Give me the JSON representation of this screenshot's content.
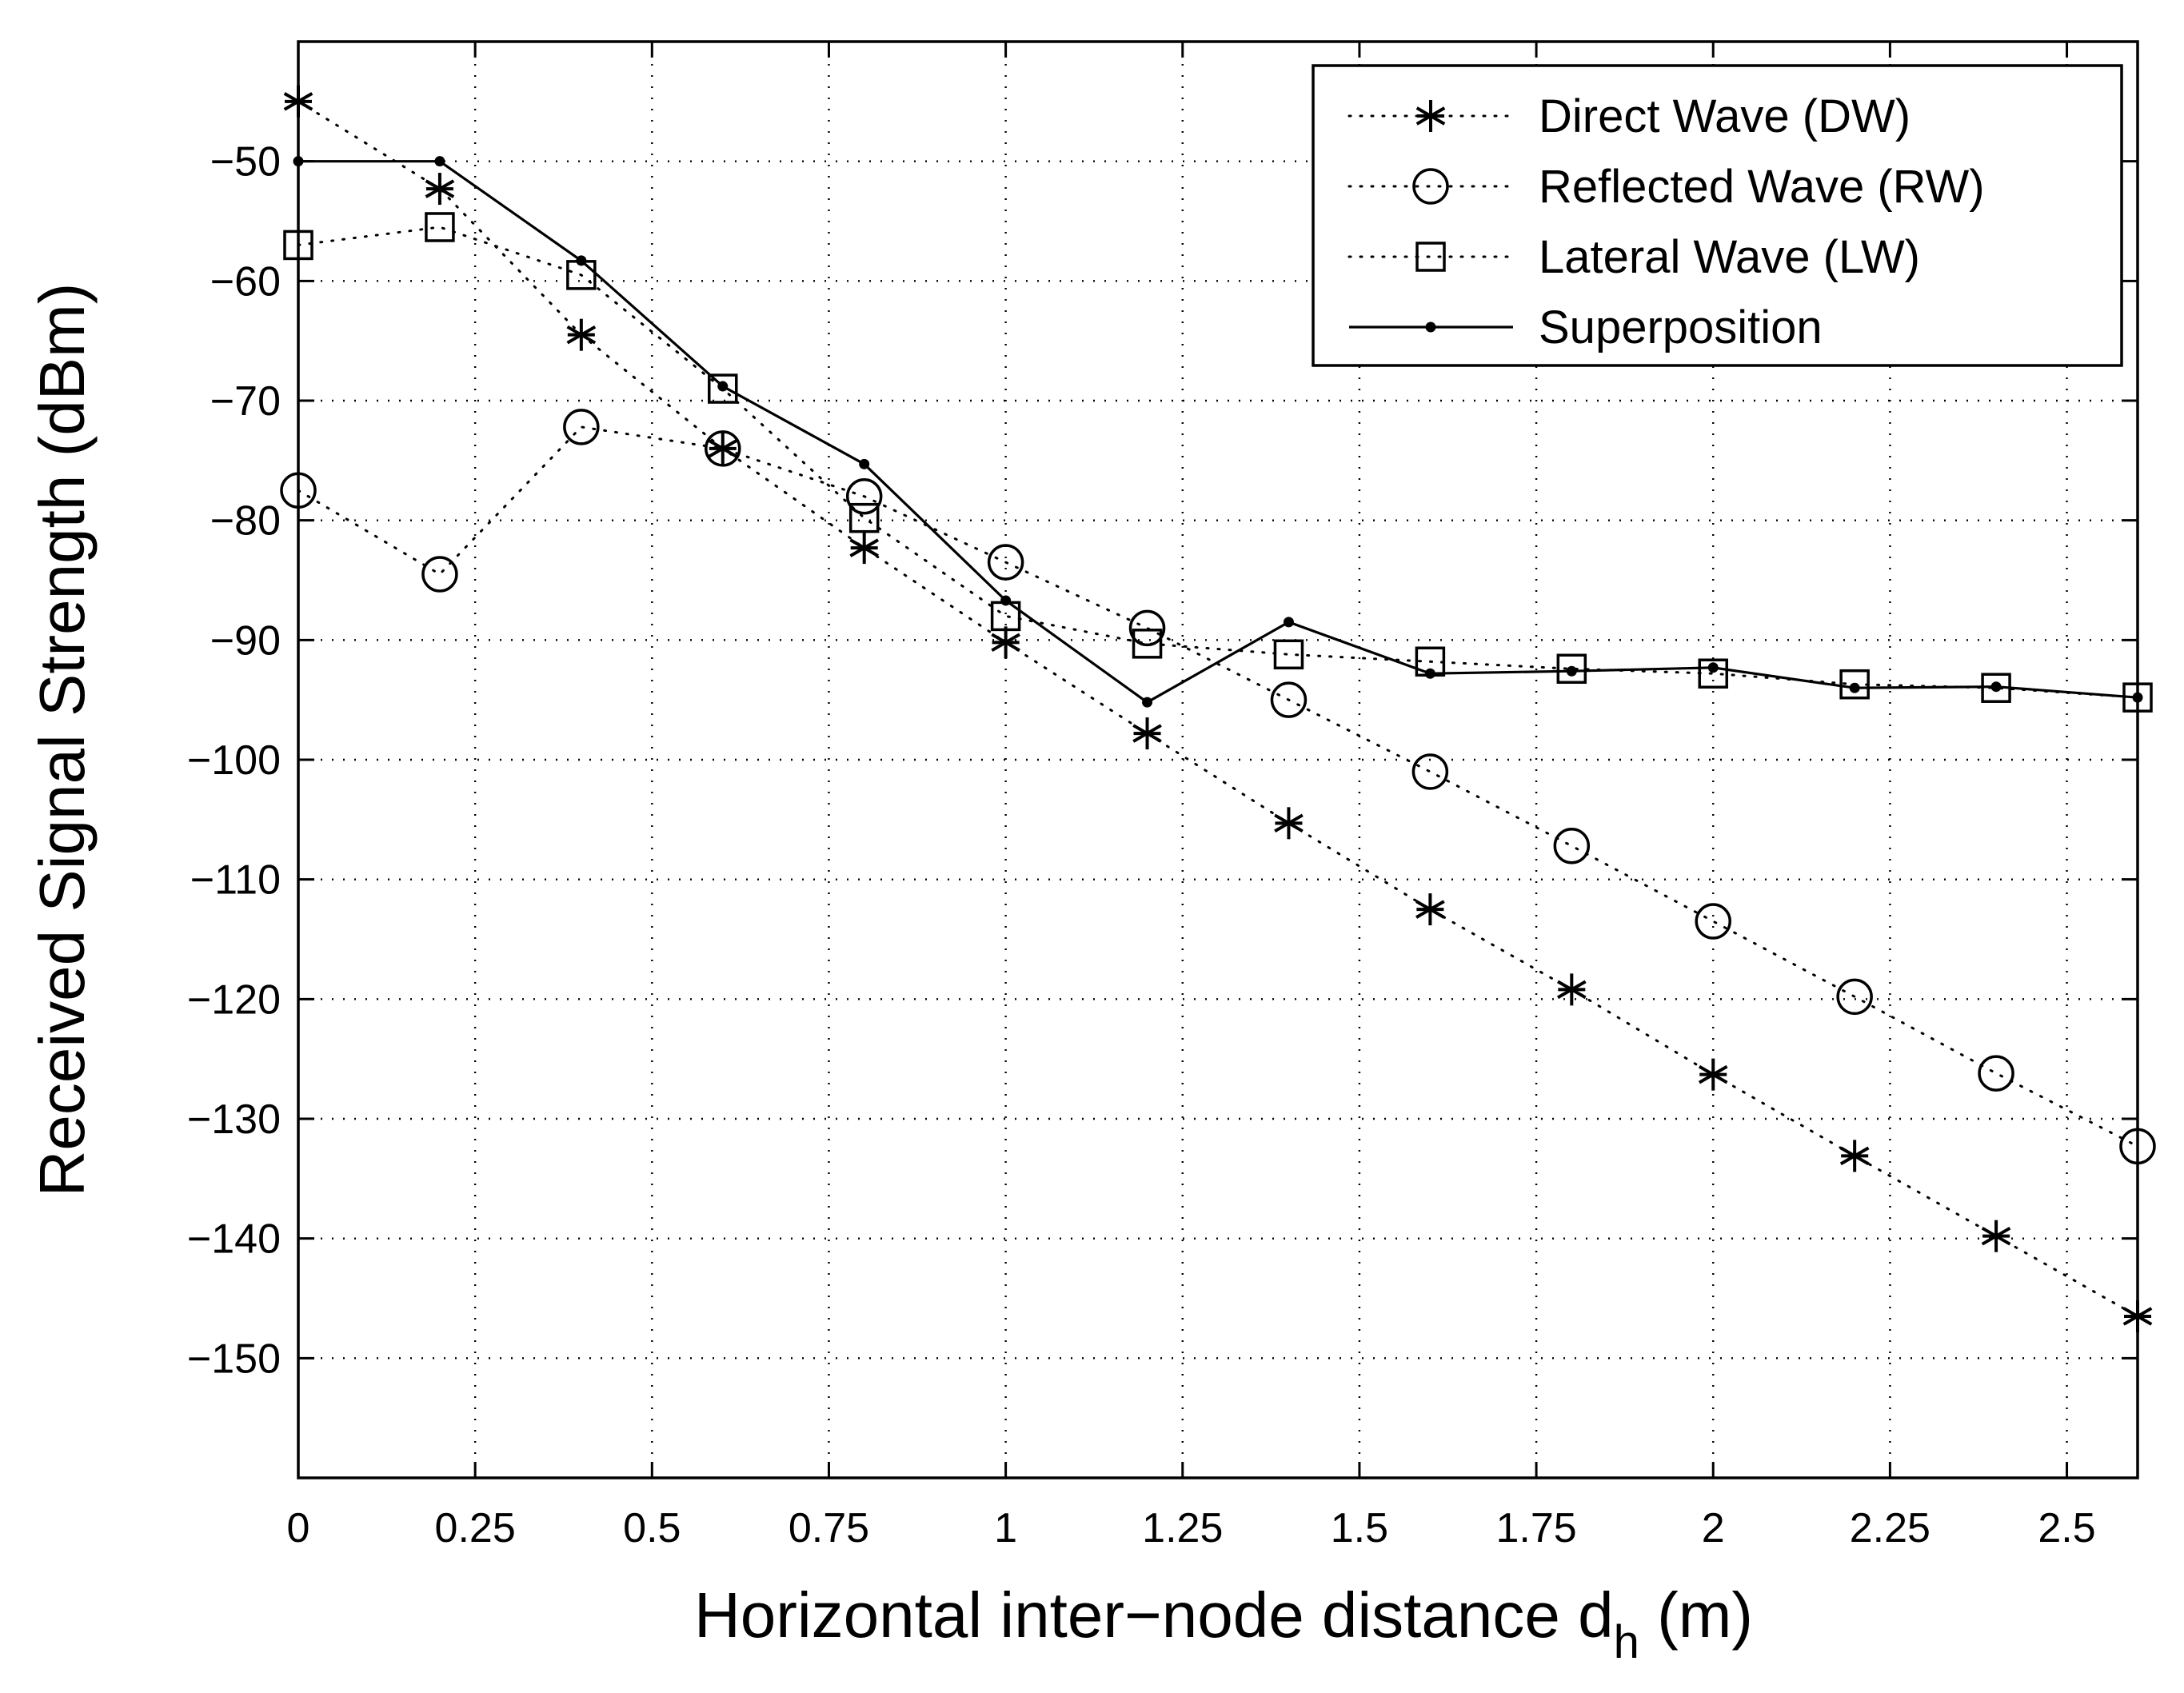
{
  "chart_data": {
    "type": "line",
    "title": "",
    "xlabel": "Horizontal inter−node distance d",
    "xlabel_subscript": "h",
    "xlabel_suffix": " (m)",
    "ylabel": "Received Signal Strength (dBm)",
    "xlim": [
      0,
      2.6
    ],
    "ylim": [
      -160,
      -40
    ],
    "xticks": [
      0,
      0.25,
      0.5,
      0.75,
      1,
      1.25,
      1.5,
      1.75,
      2,
      2.25,
      2.5
    ],
    "xtick_labels": [
      "0",
      "0.25",
      "0.5",
      "0.75",
      "1",
      "1.25",
      "1.5",
      "1.75",
      "2",
      "2.25",
      "2.5"
    ],
    "yticks": [
      -150,
      -140,
      -130,
      -120,
      -110,
      -100,
      -90,
      -80,
      -70,
      -60,
      -50
    ],
    "ytick_labels": [
      "−150",
      "−140",
      "−130",
      "−120",
      "−110",
      "−100",
      "−90",
      "−80",
      "−70",
      "−60",
      "−50"
    ],
    "grid": true,
    "legend_position": "top-right",
    "x": [
      0,
      0.2,
      0.4,
      0.6,
      0.8,
      1.0,
      1.2,
      1.4,
      1.6,
      1.8,
      2.0,
      2.2,
      2.4,
      2.6
    ],
    "series": [
      {
        "name": "Direct Wave (DW)",
        "marker": "asterisk",
        "line": "dotted",
        "values": [
          -45,
          -52.3,
          -64.5,
          -74,
          -82.3,
          -90.2,
          -97.8,
          -105.3,
          -112.5,
          -119.2,
          -126.3,
          -133.1,
          -139.8,
          -146.5
        ]
      },
      {
        "name": "Reflected Wave (RW)",
        "marker": "circle",
        "line": "dotted",
        "values": [
          -77.5,
          -84.5,
          -72.2,
          -74,
          -78,
          -83.5,
          -89,
          -95,
          -101,
          -107.2,
          -113.5,
          -119.8,
          -126.2,
          -132.3
        ]
      },
      {
        "name": "Lateral Wave (LW)",
        "marker": "square",
        "line": "dotted",
        "values": [
          -57,
          -55.5,
          -59.5,
          -69,
          -79.8,
          -88,
          -90.3,
          -91.2,
          -91.8,
          -92.4,
          -92.8,
          -93.7,
          -94,
          -94.8
        ]
      },
      {
        "name": "Superposition",
        "marker": "dot",
        "line": "solid",
        "values": [
          -50,
          -50,
          -58.3,
          -68.8,
          -75.3,
          -86.7,
          -95.2,
          -88.5,
          -92.8,
          -92.6,
          -92.3,
          -94,
          -93.9,
          -94.8
        ]
      }
    ]
  }
}
